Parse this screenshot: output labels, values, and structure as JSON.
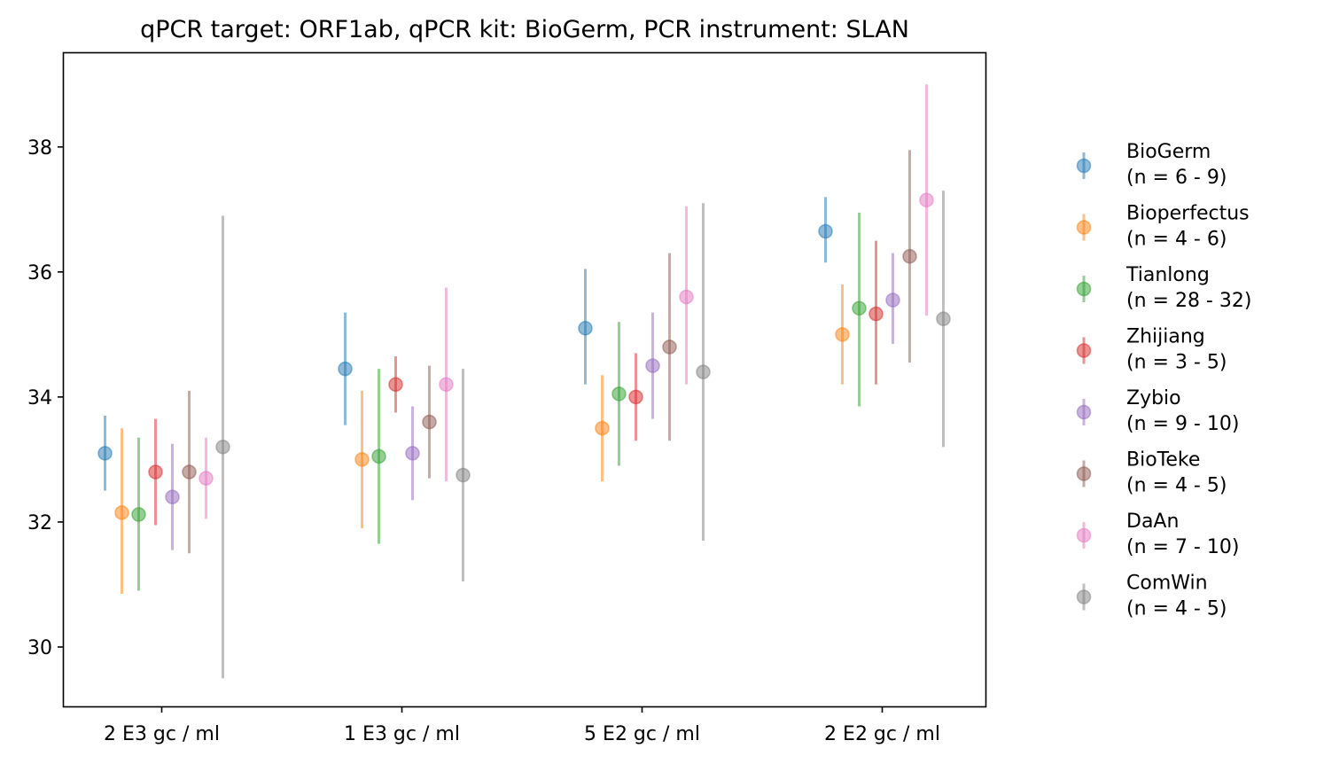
{
  "chart_data": {
    "type": "scatter",
    "subtype": "errorbar",
    "title": "qPCR target: ORF1ab, qPCR kit: BioGerm, PCR instrument: SLAN",
    "xlabel": "",
    "ylabel": "",
    "categories": [
      "2 E3 gc / ml",
      "1 E3 gc / ml",
      "5 E2 gc / ml",
      "2 E2 gc / ml"
    ],
    "ylim": [
      29.05,
      39.5
    ],
    "yticks": [
      30,
      32,
      34,
      36,
      38
    ],
    "ytick_labels": [
      "30",
      "32",
      "34",
      "36",
      "38"
    ],
    "legend_position": "right",
    "series": [
      {
        "name": "BioGerm",
        "n_label": "(n = 6 - 9)",
        "color": "#1f77b4",
        "values": [
          33.1,
          34.45,
          35.1,
          36.65
        ],
        "lower": [
          32.5,
          33.55,
          34.2,
          36.15
        ],
        "upper": [
          33.7,
          35.35,
          36.05,
          37.2
        ]
      },
      {
        "name": "Bioperfectus",
        "n_label": "(n = 4 - 6)",
        "color": "#ff7f0e",
        "values": [
          32.15,
          33.0,
          33.5,
          35.0
        ],
        "lower": [
          30.85,
          31.9,
          32.65,
          34.2
        ],
        "upper": [
          33.5,
          34.1,
          34.35,
          35.8
        ]
      },
      {
        "name": "Tianlong",
        "n_label": "(n = 28 - 32)",
        "color": "#2ca02c",
        "values": [
          32.12,
          33.05,
          34.05,
          35.42
        ],
        "lower": [
          30.9,
          31.65,
          32.9,
          33.85
        ],
        "upper": [
          33.35,
          34.45,
          35.2,
          36.95
        ]
      },
      {
        "name": "Zhijiang",
        "n_label": "(n = 3 - 5)",
        "color": "#d62728",
        "values": [
          32.8,
          34.2,
          34.0,
          35.33
        ],
        "lower": [
          31.95,
          33.75,
          33.3,
          34.2
        ],
        "upper": [
          33.65,
          34.65,
          34.7,
          36.5
        ]
      },
      {
        "name": "Zybio",
        "n_label": "(n = 9 - 10)",
        "color": "#9467bd",
        "values": [
          32.4,
          33.1,
          34.5,
          35.55
        ],
        "lower": [
          31.55,
          32.35,
          33.65,
          34.85
        ],
        "upper": [
          33.25,
          33.85,
          35.35,
          36.3
        ]
      },
      {
        "name": "BioTeke",
        "n_label": "(n = 4 - 5)",
        "color": "#8c564b",
        "values": [
          32.8,
          33.6,
          34.8,
          36.25
        ],
        "lower": [
          31.5,
          32.7,
          33.3,
          34.55
        ],
        "upper": [
          34.1,
          34.5,
          36.3,
          37.95
        ]
      },
      {
        "name": "DaAn",
        "n_label": "(n = 7 - 10)",
        "color": "#e377c2",
        "values": [
          32.7,
          34.2,
          35.6,
          37.15
        ],
        "lower": [
          32.05,
          32.65,
          34.2,
          35.3
        ],
        "upper": [
          33.35,
          35.75,
          37.05,
          39.0
        ]
      },
      {
        "name": "ComWin",
        "n_label": "(n = 4 - 5)",
        "color": "#7f7f7f",
        "values": [
          33.2,
          32.75,
          34.4,
          35.25
        ],
        "lower": [
          29.5,
          31.05,
          31.7,
          33.2
        ],
        "upper": [
          36.9,
          34.45,
          37.1,
          37.3
        ]
      }
    ]
  }
}
